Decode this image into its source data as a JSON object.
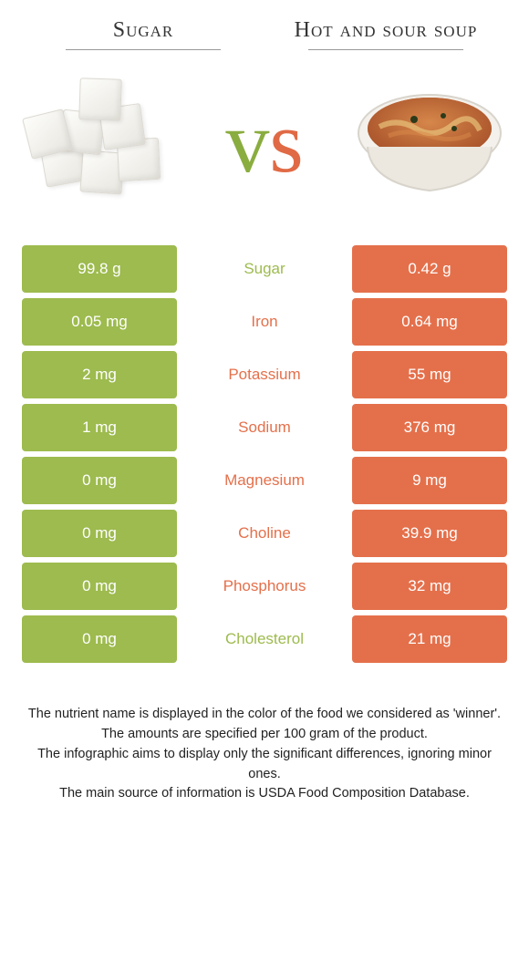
{
  "colors": {
    "left": "#9dbb4e",
    "right": "#e4704b",
    "bg": "#ffffff",
    "text_dark": "#333333"
  },
  "header": {
    "left_title": "Sugar",
    "right_title": "Hot and sour soup"
  },
  "vs": {
    "v": "v",
    "s": "s"
  },
  "rows": [
    {
      "left": "99.8 g",
      "label": "Sugar",
      "right": "0.42 g",
      "winner": "left"
    },
    {
      "left": "0.05 mg",
      "label": "Iron",
      "right": "0.64 mg",
      "winner": "right"
    },
    {
      "left": "2 mg",
      "label": "Potassium",
      "right": "55 mg",
      "winner": "right"
    },
    {
      "left": "1 mg",
      "label": "Sodium",
      "right": "376 mg",
      "winner": "right"
    },
    {
      "left": "0 mg",
      "label": "Magnesium",
      "right": "9 mg",
      "winner": "right"
    },
    {
      "left": "0 mg",
      "label": "Choline",
      "right": "39.9 mg",
      "winner": "right"
    },
    {
      "left": "0 mg",
      "label": "Phosphorus",
      "right": "32 mg",
      "winner": "right"
    },
    {
      "left": "0 mg",
      "label": "Cholesterol",
      "right": "21 mg",
      "winner": "left"
    }
  ],
  "footer": {
    "line1": "The nutrient name is displayed in the color of the food we considered as 'winner'.",
    "line2": "The amounts are specified per 100 gram of the product.",
    "line3": "The infographic aims to display only the significant differences, ignoring minor ones.",
    "line4": "The main source of information is USDA Food Composition Database."
  },
  "images": {
    "left_alt": "sugar-cubes",
    "right_alt": "hot-and-sour-soup-bowl"
  }
}
